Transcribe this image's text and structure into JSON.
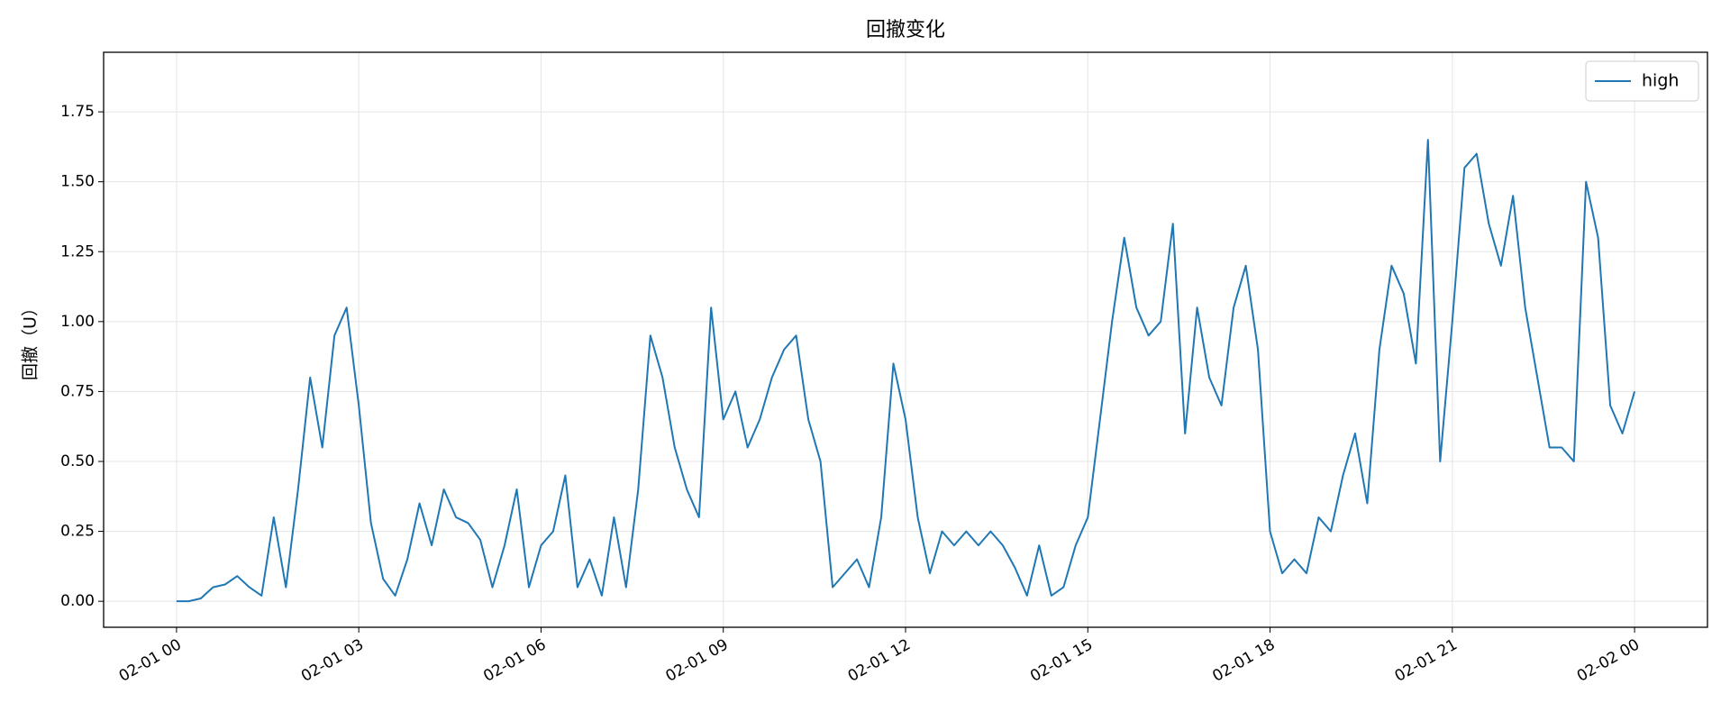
{
  "chart_data": {
    "type": "line",
    "title": "回撤变化",
    "ylabel": "回撤（U）",
    "x": [
      0,
      0.2,
      0.4,
      0.6,
      0.8,
      1.0,
      1.2,
      1.4,
      1.6,
      1.8,
      2.0,
      2.2,
      2.4,
      2.6,
      2.8,
      3.0,
      3.2,
      3.4,
      3.6,
      3.8,
      4.0,
      4.2,
      4.4,
      4.6,
      4.8,
      5.0,
      5.2,
      5.4,
      5.6,
      5.8,
      6.0,
      6.2,
      6.4,
      6.6,
      6.8,
      7.0,
      7.2,
      7.4,
      7.6,
      7.8,
      8.0,
      8.2,
      8.4,
      8.6,
      8.8,
      9.0,
      9.2,
      9.4,
      9.6,
      9.8,
      10.0,
      10.2,
      10.4,
      10.6,
      10.8,
      11.0,
      11.2,
      11.4,
      11.6,
      11.8,
      12.0,
      12.2,
      12.4,
      12.6,
      12.8,
      13.0,
      13.2,
      13.4,
      13.6,
      13.8,
      14.0,
      14.2,
      14.4,
      14.6,
      14.8,
      15.0,
      15.2,
      15.4,
      15.6,
      15.8,
      16.0,
      16.2,
      16.4,
      16.6,
      16.8,
      17.0,
      17.2,
      17.4,
      17.6,
      17.8,
      18.0,
      18.2,
      18.4,
      18.6,
      18.8,
      19.0,
      19.2,
      19.4,
      19.6,
      19.8,
      20.0,
      20.2,
      20.4,
      20.6,
      20.8,
      21.0,
      21.2,
      21.4,
      21.6,
      21.8,
      22.0,
      22.2,
      22.4,
      22.6,
      22.8,
      23.0,
      23.2,
      23.4,
      23.6,
      23.8,
      24.0
    ],
    "series": [
      {
        "name": "high",
        "color": "#1f77b4",
        "values": [
          0,
          0,
          0.01,
          0.05,
          0.06,
          0.09,
          0.05,
          0.02,
          0.3,
          0.05,
          0.4,
          0.8,
          0.55,
          0.95,
          1.05,
          0.7,
          0.28,
          0.08,
          0.02,
          0.15,
          0.35,
          0.2,
          0.4,
          0.3,
          0.28,
          0.22,
          0.05,
          0.2,
          0.4,
          0.05,
          0.2,
          0.25,
          0.45,
          0.05,
          0.15,
          0.02,
          0.3,
          0.05,
          0.4,
          0.95,
          0.8,
          0.55,
          0.4,
          0.3,
          1.05,
          0.65,
          0.75,
          0.55,
          0.65,
          0.8,
          0.9,
          0.95,
          0.65,
          0.5,
          0.05,
          0.1,
          0.15,
          0.05,
          0.3,
          0.85,
          0.65,
          0.3,
          0.1,
          0.25,
          0.2,
          0.25,
          0.2,
          0.25,
          0.2,
          0.12,
          0.02,
          0.2,
          0.02,
          0.05,
          0.2,
          0.3,
          0.65,
          1.0,
          1.3,
          1.05,
          0.95,
          1.0,
          1.35,
          0.6,
          1.05,
          0.8,
          0.7,
          1.05,
          1.2,
          0.9,
          0.25,
          0.1,
          0.15,
          0.1,
          0.3,
          0.25,
          0.45,
          0.6,
          0.35,
          0.9,
          1.2,
          1.1,
          0.85,
          1.65,
          0.5,
          1.0,
          1.55,
          1.6,
          1.35,
          1.2,
          1.45,
          1.05,
          0.8,
          0.55,
          0.55,
          0.5,
          1.5,
          1.3,
          0.7,
          0.6,
          0.75
        ]
      }
    ],
    "xlim": [
      -1.2,
      25.2
    ],
    "xticks": [
      {
        "value": 0,
        "label": "02-01 00"
      },
      {
        "value": 3,
        "label": "02-01 03"
      },
      {
        "value": 6,
        "label": "02-01 06"
      },
      {
        "value": 9,
        "label": "02-01 09"
      },
      {
        "value": 12,
        "label": "02-01 12"
      },
      {
        "value": 15,
        "label": "02-01 15"
      },
      {
        "value": 18,
        "label": "02-01 18"
      },
      {
        "value": 21,
        "label": "02-01 21"
      },
      {
        "value": 24,
        "label": "02-02 00"
      }
    ],
    "ylim": [
      -0.093,
      1.963
    ],
    "yticks": [
      {
        "value": 0,
        "label": "0.00"
      },
      {
        "value": 0.25,
        "label": "0.25"
      },
      {
        "value": 0.5,
        "label": "0.50"
      },
      {
        "value": 0.75,
        "label": "0.75"
      },
      {
        "value": 1,
        "label": "1.00"
      },
      {
        "value": 1.25,
        "label": "1.25"
      },
      {
        "value": 1.5,
        "label": "1.50"
      },
      {
        "value": 1.75,
        "label": "1.75"
      }
    ],
    "grid": true,
    "legend": "upper right"
  }
}
